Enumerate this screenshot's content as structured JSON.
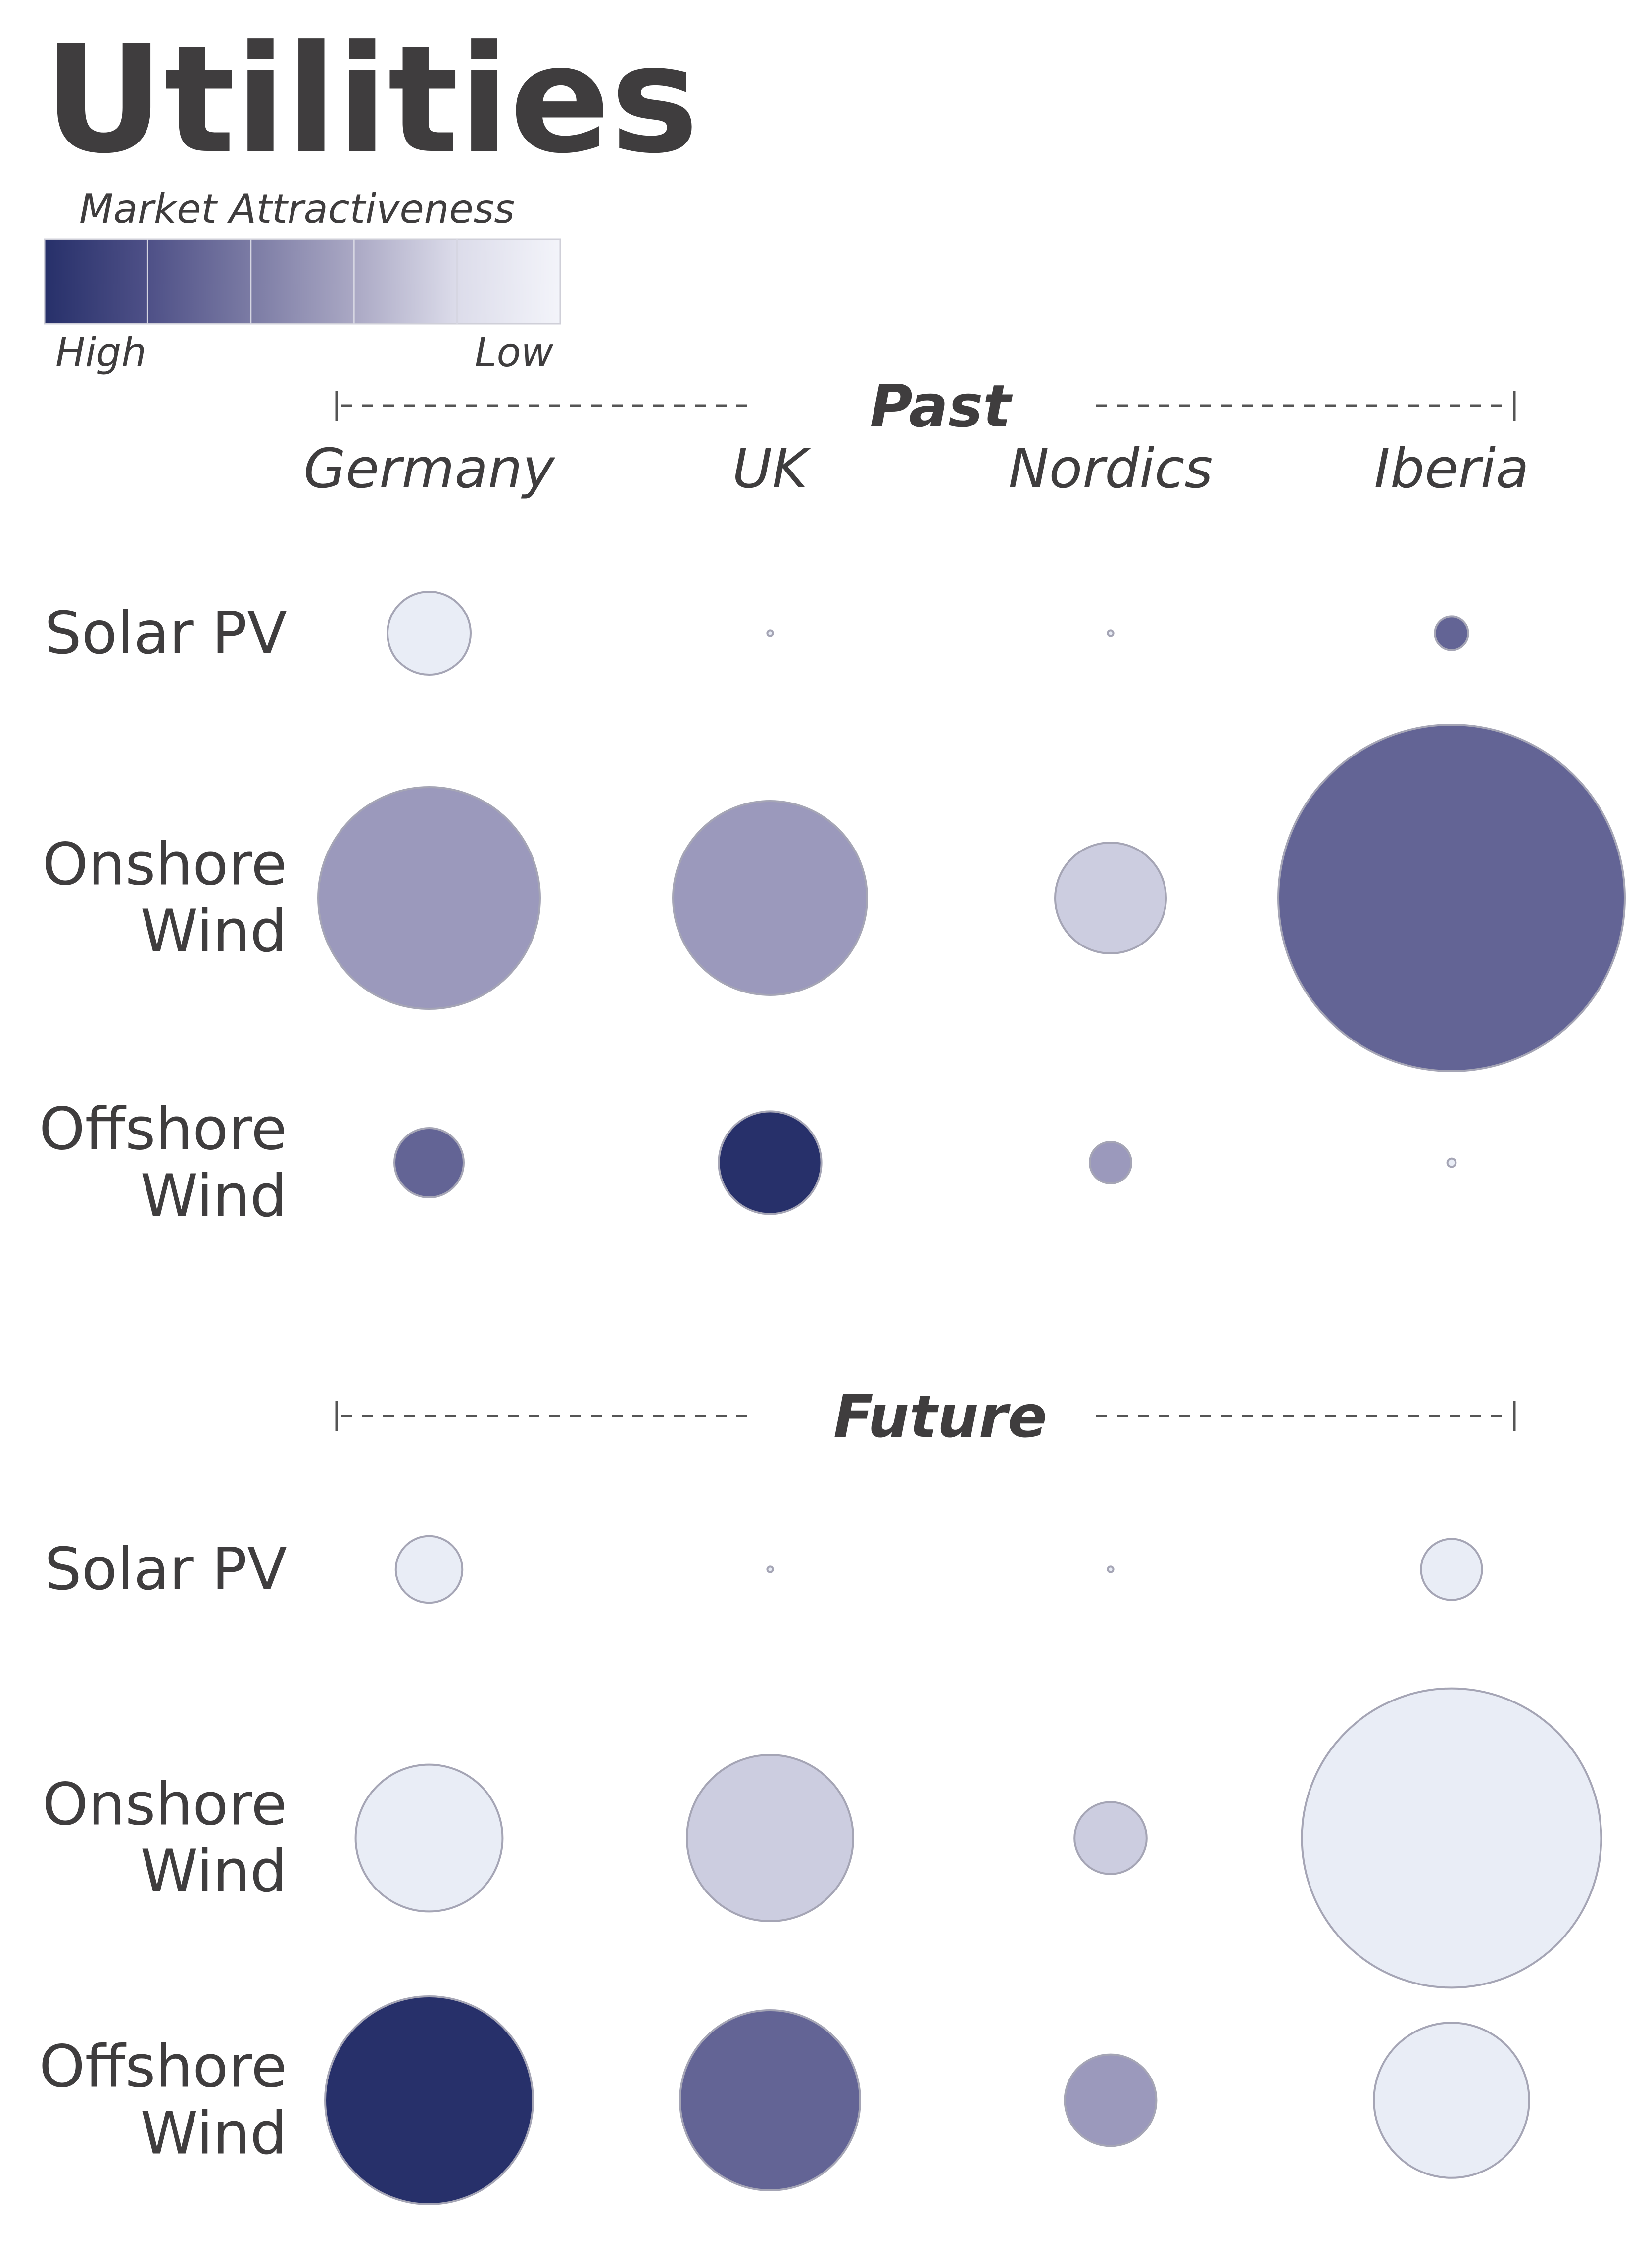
{
  "chart_data": {
    "type": "bubble",
    "title": "Utilities",
    "legend": {
      "title": "Market Attractiveness",
      "high_label": "High",
      "low_label": "Low",
      "colors": [
        "#27306a",
        "#4e5087",
        "#7b7ba4",
        "#aaa8c4",
        "#dcdcea",
        "#f3f4fa"
      ]
    },
    "countries": [
      "Germany",
      "UK",
      "Nordics",
      "Iberia"
    ],
    "technologies": [
      {
        "id": "solar",
        "lines": [
          "Solar PV"
        ]
      },
      {
        "id": "onshore",
        "lines": [
          "Onshore",
          "Wind"
        ]
      },
      {
        "id": "offshore",
        "lines": [
          "Offshore",
          "Wind"
        ]
      }
    ],
    "attractiveness_scale": {
      "1": "#27306a",
      "2": "#636495",
      "3": "#9b99bc",
      "4": "#cccde0",
      "5": "#e9edf6"
    },
    "periods": [
      {
        "label": "Past",
        "size": {
          "solar": [
            0.3,
            0.02,
            0.02,
            0.12
          ],
          "onshore": [
            0.8,
            0.7,
            0.4,
            1.25
          ],
          "offshore": [
            0.25,
            0.37,
            0.15,
            0.03
          ]
        },
        "attractiveness": {
          "solar": [
            5,
            5,
            5,
            2
          ],
          "onshore": [
            3,
            3,
            4,
            2
          ],
          "offshore": [
            2,
            1,
            3,
            5
          ]
        }
      },
      {
        "label": "Future",
        "size": {
          "solar": [
            0.24,
            0.02,
            0.02,
            0.22
          ],
          "onshore": [
            0.53,
            0.6,
            0.26,
            1.08
          ],
          "offshore": [
            0.75,
            0.65,
            0.33,
            0.56
          ]
        },
        "attractiveness": {
          "solar": [
            5,
            5,
            5,
            5
          ],
          "onshore": [
            5,
            4,
            4,
            5
          ],
          "offshore": [
            1,
            2,
            3,
            5
          ]
        }
      }
    ]
  }
}
